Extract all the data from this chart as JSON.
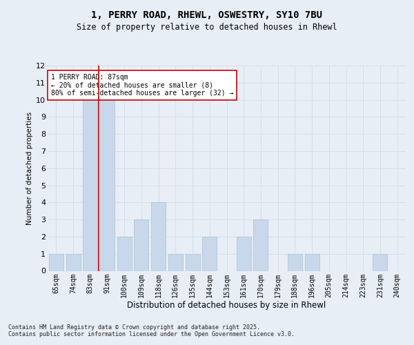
{
  "title_line1": "1, PERRY ROAD, RHEWL, OSWESTRY, SY10 7BU",
  "title_line2": "Size of property relative to detached houses in Rhewl",
  "xlabel": "Distribution of detached houses by size in Rhewl",
  "ylabel": "Number of detached properties",
  "categories": [
    "65sqm",
    "74sqm",
    "83sqm",
    "91sqm",
    "100sqm",
    "109sqm",
    "118sqm",
    "126sqm",
    "135sqm",
    "144sqm",
    "153sqm",
    "161sqm",
    "170sqm",
    "179sqm",
    "188sqm",
    "196sqm",
    "205sqm",
    "214sqm",
    "223sqm",
    "231sqm",
    "240sqm"
  ],
  "values": [
    1,
    1,
    10,
    10,
    2,
    3,
    4,
    1,
    1,
    2,
    0,
    2,
    3,
    0,
    1,
    1,
    0,
    0,
    0,
    1,
    0
  ],
  "bar_color": "#c8d8ea",
  "bar_edgecolor": "#b0c4d8",
  "grid_color": "#d4dcea",
  "vline_x_index": 2.5,
  "vline_color": "#cc0000",
  "annotation_text": "1 PERRY ROAD: 87sqm\n← 20% of detached houses are smaller (8)\n80% of semi-detached houses are larger (32) →",
  "annotation_box_color": "#ffffff",
  "annotation_box_edgecolor": "#cc0000",
  "ylim": [
    0,
    12
  ],
  "yticks": [
    0,
    1,
    2,
    3,
    4,
    5,
    6,
    7,
    8,
    9,
    10,
    11,
    12
  ],
  "footer_text": "Contains HM Land Registry data © Crown copyright and database right 2025.\nContains public sector information licensed under the Open Government Licence v3.0.",
  "bg_color": "#e8eef6"
}
